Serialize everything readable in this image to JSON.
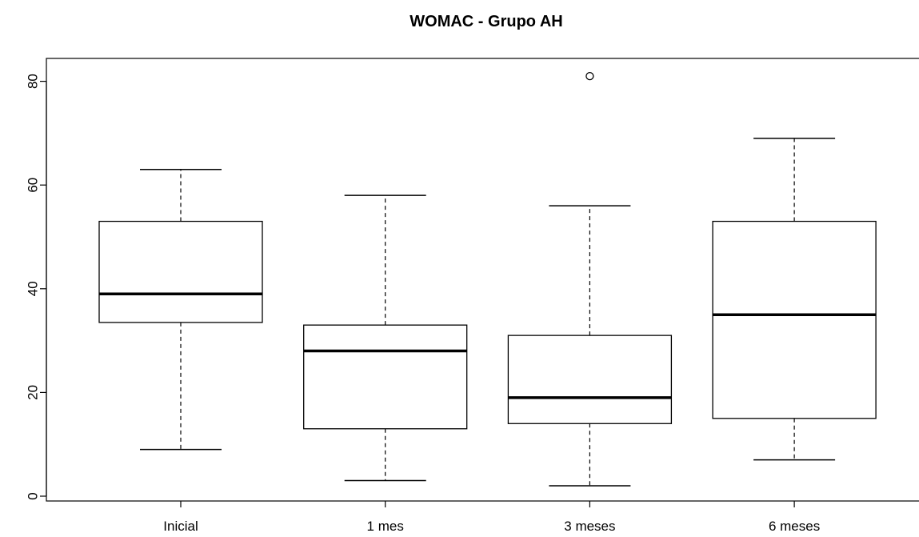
{
  "chart_data": {
    "type": "boxplot",
    "title": "WOMAC - Grupo AH",
    "xlabel": "",
    "ylabel": "",
    "categories": [
      "Inicial",
      "1 mes",
      "3 meses",
      "6 meses"
    ],
    "boxes": [
      {
        "whisker_low": 9,
        "q1": 33.5,
        "median": 39,
        "q3": 53,
        "whisker_high": 63,
        "outliers": []
      },
      {
        "whisker_low": 3,
        "q1": 13,
        "median": 28,
        "q3": 33,
        "whisker_high": 58,
        "outliers": []
      },
      {
        "whisker_low": 2,
        "q1": 14,
        "median": 19,
        "q3": 31,
        "whisker_high": 56,
        "outliers": [
          81
        ]
      },
      {
        "whisker_low": 7,
        "q1": 15,
        "median": 35,
        "q3": 53,
        "whisker_high": 69,
        "outliers": []
      }
    ],
    "yticks": [
      "0",
      "20",
      "40",
      "60",
      "80"
    ],
    "ylim": [
      0,
      80
    ],
    "grid": false,
    "box_color": "#ffffff",
    "line_color": "#000000"
  }
}
